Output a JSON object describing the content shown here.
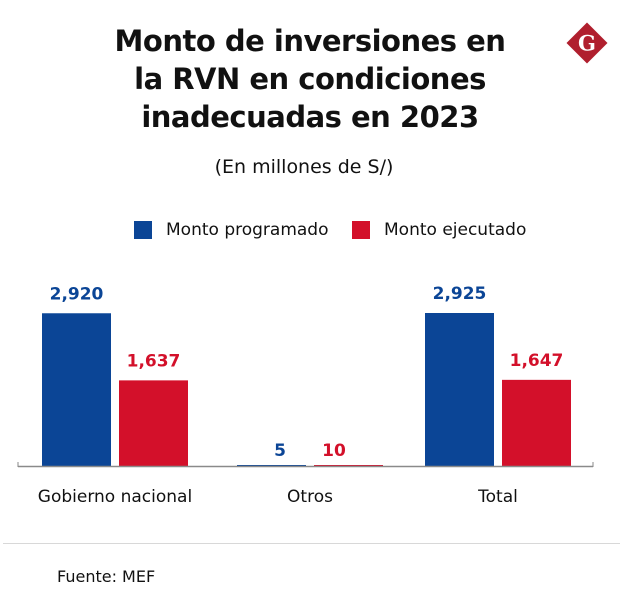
{
  "chart_data": {
    "type": "bar",
    "title": "Monto de inversiones en la RVN en condiciones inadecuadas en 2023",
    "title_lines": [
      "Monto de inversiones en",
      "la RVN en condiciones",
      "inadecuadas en 2023"
    ],
    "subtitle": "(En millones de S/)",
    "categories": [
      "Gobierno nacional",
      "Otros",
      "Total"
    ],
    "series": [
      {
        "name": "Monto programado",
        "color": "#0b4596",
        "values": [
          2920,
          5,
          2925
        ],
        "labels": [
          "2,920",
          "5",
          "2,925"
        ]
      },
      {
        "name": "Monto ejecutado",
        "color": "#d3102a",
        "values": [
          1637,
          10,
          1647
        ],
        "labels": [
          "1,637",
          "10",
          "1,647"
        ]
      }
    ],
    "xlabel": "",
    "ylabel": "",
    "ylim": [
      0,
      2925
    ],
    "grid": false,
    "legend_position": "top-center",
    "source": "Fuente: MEF"
  },
  "brand": {
    "logo_letter": "G",
    "logo_color": "#b01f2e"
  }
}
